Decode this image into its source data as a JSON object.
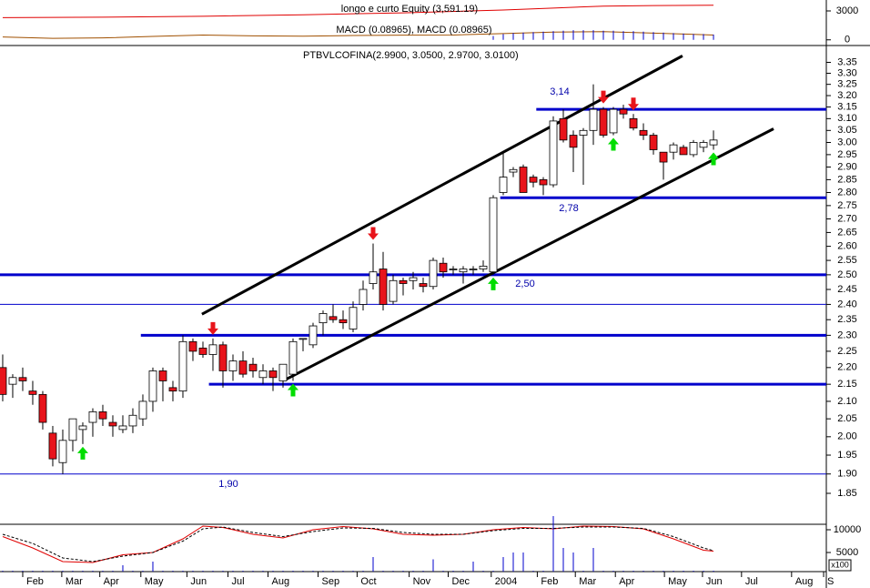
{
  "chart_data": [
    {
      "type": "candlestick",
      "title": "PTBVLCOFINA(2.9900, 3.0500, 2.9700, 3.0100)",
      "x": [
        0,
        1,
        2,
        3,
        4,
        5,
        6,
        7,
        8,
        9,
        10,
        11,
        12,
        13,
        14,
        15,
        16,
        17,
        18,
        19,
        20,
        21,
        22,
        23,
        24,
        25,
        26,
        27,
        28,
        29,
        30,
        31,
        32,
        33,
        34,
        35,
        36,
        37,
        38,
        39,
        40,
        41,
        42,
        43,
        44,
        45,
        46,
        47,
        48,
        49,
        50,
        51,
        52,
        53,
        54,
        55,
        56,
        57,
        58,
        59,
        60,
        61,
        62,
        63,
        64,
        65,
        66,
        67,
        68,
        69,
        70,
        71
      ],
      "open": [
        2.2,
        2.15,
        2.17,
        2.13,
        2.12,
        2.01,
        1.93,
        1.99,
        2.02,
        2.04,
        2.07,
        2.04,
        2.02,
        2.03,
        2.05,
        2.1,
        2.19,
        2.14,
        2.13,
        2.28,
        2.26,
        2.24,
        2.27,
        2.19,
        2.22,
        2.21,
        2.17,
        2.19,
        2.16,
        2.18,
        2.29,
        2.27,
        2.34,
        2.36,
        2.35,
        2.32,
        2.4,
        2.47,
        2.52,
        2.41,
        2.48,
        2.48,
        2.47,
        2.46,
        2.54,
        2.52,
        2.51,
        2.52,
        2.52,
        2.51,
        2.8,
        2.88,
        2.9,
        2.86,
        2.85,
        2.83,
        3.1,
        3.03,
        3.03,
        3.05,
        3.14,
        3.04,
        3.14,
        3.1,
        3.05,
        3.03,
        2.96,
        2.96,
        2.98,
        2.95,
        2.98,
        2.99
      ],
      "high": [
        2.24,
        2.18,
        2.2,
        2.16,
        2.13,
        2.03,
        2.02,
        2.05,
        2.04,
        2.08,
        2.09,
        2.06,
        2.06,
        2.08,
        2.12,
        2.2,
        2.2,
        2.16,
        2.3,
        2.29,
        2.28,
        2.29,
        2.28,
        2.24,
        2.25,
        2.23,
        2.21,
        2.2,
        2.2,
        2.29,
        2.29,
        2.34,
        2.38,
        2.4,
        2.38,
        2.41,
        2.48,
        2.61,
        2.58,
        2.5,
        2.49,
        2.51,
        2.49,
        2.56,
        2.56,
        2.53,
        2.53,
        2.53,
        2.55,
        2.79,
        2.96,
        2.9,
        2.91,
        2.87,
        2.86,
        3.11,
        3.14,
        3.05,
        3.06,
        3.25,
        3.15,
        3.15,
        3.16,
        3.12,
        3.08,
        3.04,
        2.96,
        3.0,
        2.99,
        3.01,
        3.01,
        3.05
      ],
      "low": [
        2.1,
        2.11,
        2.13,
        2.09,
        2.02,
        1.92,
        1.9,
        1.96,
        1.98,
        2.0,
        2.03,
        2.0,
        2.01,
        2.01,
        2.03,
        2.07,
        2.1,
        2.1,
        2.11,
        2.22,
        2.23,
        2.19,
        2.14,
        2.16,
        2.17,
        2.17,
        2.15,
        2.13,
        2.14,
        2.16,
        2.25,
        2.26,
        2.3,
        2.34,
        2.32,
        2.31,
        2.38,
        2.45,
        2.38,
        2.4,
        2.43,
        2.45,
        2.44,
        2.45,
        2.49,
        2.5,
        2.47,
        2.5,
        2.51,
        2.5,
        2.79,
        2.86,
        2.81,
        2.82,
        2.79,
        2.82,
        3.0,
        2.88,
        2.83,
        2.99,
        3.02,
        3.03,
        3.1,
        3.05,
        3.01,
        2.95,
        2.85,
        2.93,
        2.95,
        2.94,
        2.96,
        2.97
      ],
      "close": [
        2.12,
        2.17,
        2.16,
        2.12,
        2.04,
        1.94,
        1.99,
        2.05,
        2.03,
        2.07,
        2.05,
        2.03,
        2.03,
        2.06,
        2.1,
        2.19,
        2.16,
        2.13,
        2.28,
        2.25,
        2.24,
        2.27,
        2.19,
        2.22,
        2.18,
        2.19,
        2.19,
        2.17,
        2.21,
        2.28,
        2.29,
        2.33,
        2.37,
        2.35,
        2.34,
        2.39,
        2.45,
        2.51,
        2.4,
        2.48,
        2.47,
        2.49,
        2.46,
        2.55,
        2.51,
        2.52,
        2.52,
        2.52,
        2.53,
        2.78,
        2.86,
        2.89,
        2.8,
        2.84,
        2.83,
        3.09,
        3.01,
        2.98,
        3.05,
        3.14,
        3.03,
        3.14,
        3.12,
        3.06,
        3.03,
        2.97,
        2.92,
        2.99,
        2.95,
        3.0,
        3.0,
        3.01
      ],
      "up_color": "#ffffff",
      "down_color": "#e8141b",
      "xlim": [
        -0.27,
        82.27
      ],
      "xticks": [
        {
          "value": 2.0,
          "label": "Feb"
        },
        {
          "value": 5.9,
          "label": "Mar"
        },
        {
          "value": 9.7,
          "label": "Apr"
        },
        {
          "value": 13.8,
          "label": "May"
        },
        {
          "value": 18.4,
          "label": "Jun"
        },
        {
          "value": 22.5,
          "label": "Jul"
        },
        {
          "value": 26.5,
          "label": "Aug"
        },
        {
          "value": 31.5,
          "label": "Sep"
        },
        {
          "value": 35.4,
          "label": "Oct"
        },
        {
          "value": 40.6,
          "label": "Nov"
        },
        {
          "value": 44.5,
          "label": "Dec"
        },
        {
          "value": 48.8,
          "label": "2004"
        },
        {
          "value": 53.4,
          "label": "Feb"
        },
        {
          "value": 57.2,
          "label": "Mar"
        },
        {
          "value": 61.2,
          "label": "Apr"
        },
        {
          "value": 66.1,
          "label": "May"
        },
        {
          "value": 69.9,
          "label": "Jun"
        },
        {
          "value": 73.8,
          "label": "Jul"
        },
        {
          "value": 78.8,
          "label": "Aug"
        },
        {
          "value": 82.0,
          "label": "S"
        }
      ],
      "ylim": [
        1.775,
        3.42
      ],
      "log_scale": true,
      "yticks": [
        3.35,
        {
          "value": 3.3,
          "label": "3.30"
        },
        3.25,
        {
          "value": 3.2,
          "label": "3.20"
        },
        3.15,
        {
          "value": 3.1,
          "label": "3.10"
        },
        3.05,
        {
          "value": 3.0,
          "label": "3.00"
        },
        2.95,
        {
          "value": 2.9,
          "label": "2.90"
        },
        2.85,
        {
          "value": 2.8,
          "label": "2.80"
        },
        2.75,
        {
          "value": 2.7,
          "label": "2.70"
        },
        2.65,
        {
          "value": 2.6,
          "label": "2.60"
        },
        2.55,
        {
          "value": 2.5,
          "label": "2.50"
        },
        2.45,
        {
          "value": 2.4,
          "label": "2.40"
        },
        2.35,
        {
          "value": 2.3,
          "label": "2.30"
        },
        2.25,
        {
          "value": 2.2,
          "label": "2.20"
        },
        2.15,
        {
          "value": 2.1,
          "label": "2.10"
        },
        2.05,
        {
          "value": 2.0,
          "label": "2.00"
        },
        1.95,
        {
          "value": 1.9,
          "label": "1.90"
        },
        1.85
      ],
      "level_color": "#0000cc",
      "levels": [
        {
          "value": 3.14,
          "from": 53.3
        },
        {
          "value": 2.78,
          "from": 49.7
        },
        {
          "value": 2.5,
          "from": -0.27
        },
        {
          "value": 2.3,
          "from": 13.8
        },
        {
          "value": 2.15,
          "from": 20.6
        },
        {
          "value": 2.4,
          "from": -0.27,
          "thin": true
        },
        {
          "value": 1.9,
          "from": -0.27,
          "thin": true
        }
      ],
      "trendlines": [
        {
          "x": [
            19.9,
            67.9
          ],
          "y": [
            2.368,
            3.38
          ]
        },
        {
          "x": [
            28.2,
            77.0
          ],
          "y": [
            2.163,
            3.057
          ]
        }
      ],
      "annotations": [
        "3,14",
        "2,78",
        "2,50",
        "1,90"
      ],
      "sell_signals": [
        21,
        37,
        60,
        63
      ],
      "buy_signals": [
        8,
        29,
        49,
        61,
        71
      ]
    },
    {
      "type": "line",
      "xlim": [
        -0.27,
        82.27
      ],
      "ylim": [
        -400,
        3850
      ],
      "yticks": [
        0,
        3000
      ],
      "series": [
        {
          "name": "longo e curto Equity (3,591.19)",
          "color": "#e00000",
          "style": "line",
          "x": [
            0,
            10,
            20,
            30,
            40,
            50,
            55,
            60,
            65,
            71
          ],
          "values": [
            2300,
            2350,
            2450,
            2600,
            2800,
            3100,
            3300,
            3500,
            3550,
            3591.19
          ]
        },
        {
          "name": "MACD (0.08965), MACD (0.08965)",
          "color": "#a05000",
          "style": "line",
          "x": [
            0,
            5,
            10,
            15,
            20,
            25,
            30,
            35,
            40,
            45,
            50,
            55,
            60,
            65,
            71
          ],
          "values": [
            300,
            150,
            200,
            350,
            500,
            420,
            380,
            450,
            480,
            500,
            650,
            800,
            850,
            700,
            500
          ]
        },
        {
          "color": "#0000cc",
          "style": "bars",
          "x": [
            49,
            50,
            51,
            52,
            53,
            54,
            55,
            56,
            57,
            58,
            59,
            60,
            61,
            62,
            63,
            64,
            65,
            66,
            67,
            68,
            69,
            70,
            71
          ],
          "values": [
            400,
            600,
            700,
            750,
            800,
            850,
            900,
            950,
            1000,
            1000,
            1000,
            950,
            950,
            900,
            900,
            850,
            800,
            750,
            700,
            650,
            600,
            600,
            550
          ]
        }
      ]
    },
    {
      "type": "line",
      "xlim": [
        -0.27,
        82.27
      ],
      "ylim": [
        800,
        11000
      ],
      "yticks": [
        5000,
        10000
      ],
      "unit_label": "x100",
      "series": [
        {
          "color": "#e00000",
          "style": "line",
          "x": [
            0,
            3,
            6,
            9,
            12,
            15,
            18,
            20,
            22,
            25,
            28,
            31,
            34,
            37,
            40,
            43,
            46,
            49,
            52,
            55,
            58,
            61,
            64,
            67,
            70,
            71
          ],
          "values": [
            8500,
            6000,
            3000,
            2800,
            4500,
            5000,
            8000,
            10800,
            10500,
            9000,
            8200,
            10000,
            10700,
            10200,
            9000,
            8800,
            9000,
            10000,
            10500,
            10200,
            10800,
            10700,
            10200,
            8000,
            5500,
            5300
          ]
        },
        {
          "color": "#000000",
          "style": "dashed",
          "x": [
            0,
            3,
            6,
            9,
            12,
            15,
            18,
            20,
            22,
            25,
            28,
            31,
            34,
            37,
            40,
            43,
            46,
            49,
            52,
            55,
            58,
            61,
            64,
            67,
            70,
            71
          ],
          "values": [
            9000,
            7000,
            3800,
            3000,
            4200,
            5000,
            7500,
            10200,
            10600,
            9400,
            8500,
            9600,
            10400,
            10300,
            9400,
            9000,
            9000,
            9800,
            10300,
            10300,
            10600,
            10600,
            10300,
            8500,
            6000,
            5400
          ]
        },
        {
          "color": "#0000cc",
          "style": "bars",
          "x": [
            0,
            1,
            2,
            3,
            4,
            5,
            6,
            7,
            8,
            9,
            10,
            11,
            12,
            13,
            14,
            15,
            16,
            17,
            18,
            19,
            20,
            21,
            22,
            23,
            24,
            25,
            26,
            27,
            28,
            29,
            30,
            31,
            32,
            33,
            34,
            35,
            36,
            37,
            38,
            39,
            40,
            41,
            42,
            43,
            44,
            45,
            46,
            47,
            48,
            49,
            50,
            51,
            52,
            53,
            54,
            55,
            56,
            57,
            58,
            59,
            60,
            61,
            62,
            63,
            64,
            65,
            66,
            67,
            68,
            69,
            70,
            71
          ],
          "values": [
            1000,
            1000,
            1000,
            1000,
            1000,
            1000,
            1000,
            1000,
            1000,
            1000,
            1000,
            1000,
            2200,
            1000,
            1000,
            3000,
            1000,
            1000,
            1000,
            1000,
            1000,
            1000,
            1000,
            1000,
            1000,
            1000,
            1000,
            1000,
            1000,
            1000,
            1000,
            1000,
            1000,
            1000,
            1000,
            1000,
            1000,
            4000,
            1000,
            1000,
            1000,
            1000,
            1000,
            3500,
            1000,
            1000,
            1000,
            3000,
            1000,
            1000,
            4000,
            5000,
            5000,
            1000,
            1000,
            13000,
            6000,
            5000,
            1000,
            6000,
            1000,
            1000,
            1000,
            1000,
            1000,
            1000,
            1000,
            1000,
            1000,
            1000,
            1000,
            1000
          ]
        }
      ]
    }
  ]
}
